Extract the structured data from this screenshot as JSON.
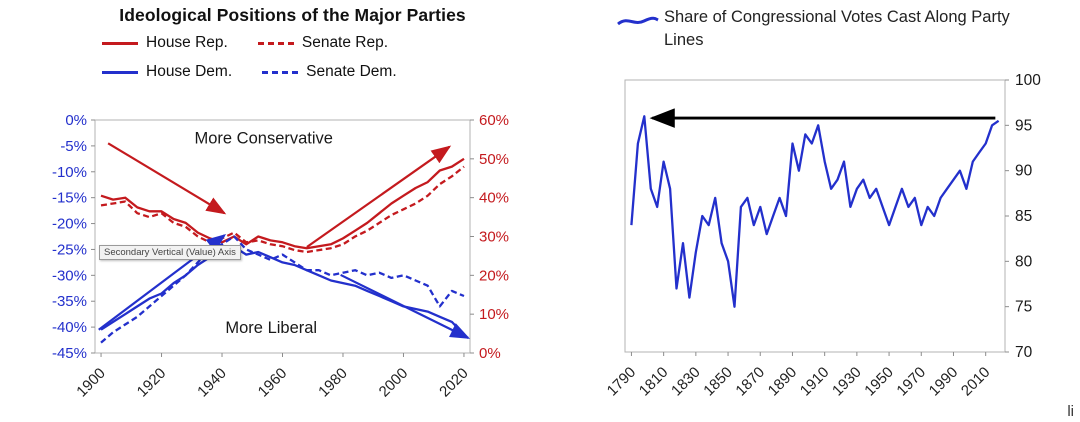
{
  "left_chart": {
    "title": "Ideological Positions of the Major Parties",
    "legend": [
      {
        "label": "House Rep."
      },
      {
        "label": "Senate Rep."
      },
      {
        "label": "House Dem."
      },
      {
        "label": "Senate Dem."
      }
    ],
    "tooltip": "Secondary Vertical (Value) Axis"
  },
  "right_chart": {
    "legend_label": "Share of Congressional Votes Cast Along Party Lines"
  },
  "footer": {
    "partial_text": "li"
  },
  "colors": {
    "republican_red": "#c41a1e",
    "democrat_blue": "#2330cc",
    "arrow_black": "#000000",
    "frame_gray": "#b3b3b3",
    "tick_gray": "#8c8c8c",
    "text_dark": "#1a1a1a"
  },
  "chart_data": [
    {
      "type": "line",
      "title": "Ideological Positions of the Major Parties",
      "x_range": [
        1898,
        2022
      ],
      "x_ticks": [
        1900,
        1920,
        1940,
        1960,
        1980,
        2000,
        2020
      ],
      "left_axis": {
        "min": -45,
        "max": 0,
        "step": 5,
        "color": "#2330cc",
        "format": "percent"
      },
      "right_axis": {
        "min": 0,
        "max": 60,
        "step": 10,
        "color": "#c41a1e",
        "format": "percent"
      },
      "annotations": [
        "More Conservative",
        "More Liberal"
      ],
      "x": [
        1900,
        1904,
        1908,
        1912,
        1916,
        1920,
        1924,
        1928,
        1932,
        1936,
        1940,
        1944,
        1948,
        1952,
        1956,
        1960,
        1964,
        1968,
        1972,
        1976,
        1980,
        1984,
        1988,
        1992,
        1996,
        2000,
        2004,
        2008,
        2012,
        2016,
        2020
      ],
      "series": [
        {
          "name": "House Rep.",
          "axis": "right",
          "color": "#c41a1e",
          "dash": null,
          "values": [
            40.5,
            39.5,
            40,
            37.5,
            36.5,
            36.5,
            34.5,
            33.5,
            31,
            29.5,
            28.5,
            30,
            28,
            30,
            29,
            28.5,
            27.5,
            27,
            27.5,
            28,
            29.5,
            31.5,
            33.5,
            36,
            38.5,
            40.5,
            42.5,
            44,
            47,
            48,
            50
          ]
        },
        {
          "name": "Senate Rep.",
          "axis": "right",
          "color": "#c41a1e",
          "dash": "6 3.5",
          "values": [
            38,
            38.5,
            39,
            36,
            35,
            36,
            33.5,
            32.5,
            30,
            28.5,
            29.5,
            31,
            28.5,
            29,
            28,
            27.5,
            26.5,
            26,
            26.5,
            27,
            28,
            30,
            31.5,
            33.5,
            35.5,
            37,
            38.5,
            40.5,
            43.5,
            45.5,
            48
          ]
        },
        {
          "name": "House Dem.",
          "axis": "left",
          "color": "#2330cc",
          "dash": null,
          "values": [
            -40.5,
            -39,
            -37.5,
            -36,
            -34.5,
            -33.5,
            -31.5,
            -30,
            -28,
            -26.5,
            -25.5,
            -24.5,
            -26,
            -25.5,
            -26.5,
            -27.5,
            -28,
            -29,
            -30,
            -31,
            -31.5,
            -32,
            -33,
            -34,
            -35,
            -36,
            -36.5,
            -37,
            -38,
            -39,
            -41.5
          ]
        },
        {
          "name": "Senate Dem.",
          "axis": "left",
          "color": "#2330cc",
          "dash": "6 3.5",
          "values": [
            -43,
            -41,
            -39.5,
            -38,
            -36,
            -34,
            -32,
            -30,
            -27.5,
            -25,
            -24,
            -22.5,
            -25,
            -26,
            -27,
            -26,
            -27.5,
            -29,
            -29,
            -30,
            -29.5,
            -29,
            -30,
            -29.5,
            -30.5,
            -30,
            -31,
            -32,
            -36,
            -33,
            -34
          ]
        }
      ],
      "arrows": [
        {
          "color": "#c41a1e",
          "width": 2.2,
          "from": [
            0.035,
            0.1
          ],
          "to": [
            0.345,
            0.4
          ]
        },
        {
          "color": "#c41a1e",
          "width": 2.2,
          "from": [
            0.565,
            0.545
          ],
          "to": [
            0.945,
            0.115
          ]
        },
        {
          "color": "#2330cc",
          "width": 2.2,
          "from": [
            0.01,
            0.9
          ],
          "to": [
            0.345,
            0.495
          ]
        },
        {
          "color": "#2330cc",
          "width": 2.2,
          "from": [
            0.655,
            0.665
          ],
          "to": [
            0.995,
            0.935
          ]
        }
      ]
    },
    {
      "type": "line",
      "title": "Share of Congressional Votes Cast Along Party Lines",
      "x_range": [
        1786,
        2022
      ],
      "x_ticks": [
        1790,
        1810,
        1830,
        1850,
        1870,
        1890,
        1910,
        1930,
        1950,
        1970,
        1990,
        2010
      ],
      "y_axis": {
        "min": 70,
        "max": 100,
        "step": 5,
        "color": "#1a1a1a",
        "position": "right"
      },
      "x": [
        1790,
        1794,
        1798,
        1802,
        1806,
        1810,
        1814,
        1818,
        1822,
        1826,
        1830,
        1834,
        1838,
        1842,
        1846,
        1850,
        1854,
        1858,
        1862,
        1866,
        1870,
        1874,
        1878,
        1882,
        1886,
        1890,
        1894,
        1898,
        1902,
        1906,
        1910,
        1914,
        1918,
        1922,
        1926,
        1930,
        1934,
        1938,
        1942,
        1946,
        1950,
        1954,
        1958,
        1962,
        1966,
        1970,
        1974,
        1978,
        1982,
        1986,
        1990,
        1994,
        1998,
        2002,
        2006,
        2010,
        2014,
        2018
      ],
      "series": [
        {
          "name": "Share of Congressional Votes Cast Along Party Lines",
          "color": "#2330cc",
          "dash": null,
          "values": [
            84,
            93,
            96,
            88,
            86,
            91,
            88,
            77,
            82,
            76,
            81,
            85,
            84,
            87,
            82,
            80,
            75,
            86,
            87,
            84,
            86,
            83,
            85,
            87,
            85,
            93,
            90,
            94,
            93,
            95,
            91,
            88,
            89,
            91,
            86,
            88,
            89,
            87,
            88,
            86,
            84,
            86,
            88,
            86,
            87,
            84,
            86,
            85,
            87,
            88,
            89,
            90,
            88,
            91,
            92,
            93,
            95,
            95.5
          ]
        }
      ],
      "arrow": {
        "color": "#000000",
        "width": 2.8,
        "y": 95.8,
        "x_from": 2016,
        "x_to": 1803
      }
    }
  ]
}
